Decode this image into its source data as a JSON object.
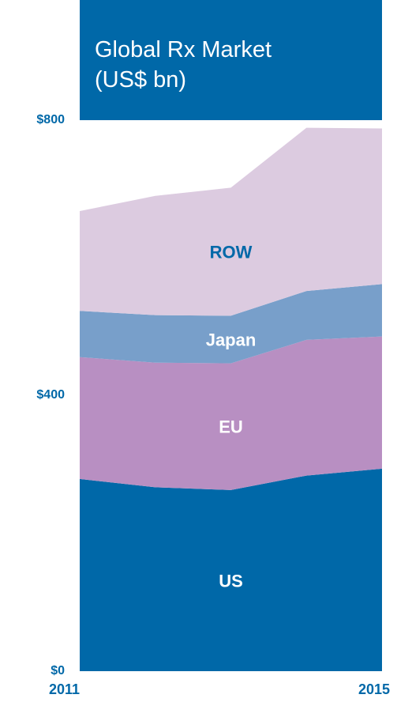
{
  "title": {
    "line1": "Global Rx Market",
    "line2": "(US$ bn)"
  },
  "colors": {
    "title_bg": "#0068a8",
    "axis_text": "#0068a8",
    "US": "#0068a8",
    "EU": "#b88fc2",
    "Japan": "#789fca",
    "ROW": "#dccbe0"
  },
  "chart_data": {
    "type": "area",
    "stacked": true,
    "x": [
      2011,
      2012,
      2013,
      2014,
      2015
    ],
    "xtick_labels": [
      "2011",
      "2015"
    ],
    "ytick_labels": [
      "$800",
      "$400",
      "$0"
    ],
    "ylim": [
      0,
      800
    ],
    "series": [
      {
        "name": "US",
        "values": [
          279,
          267,
          263,
          284,
          294
        ]
      },
      {
        "name": "EU",
        "values": [
          177,
          181,
          184,
          197,
          192
        ]
      },
      {
        "name": "Japan",
        "values": [
          67,
          69,
          69,
          71,
          76
        ]
      },
      {
        "name": "ROW",
        "values": [
          145,
          173,
          186,
          237,
          226
        ]
      }
    ],
    "legend": "labels inside areas"
  }
}
